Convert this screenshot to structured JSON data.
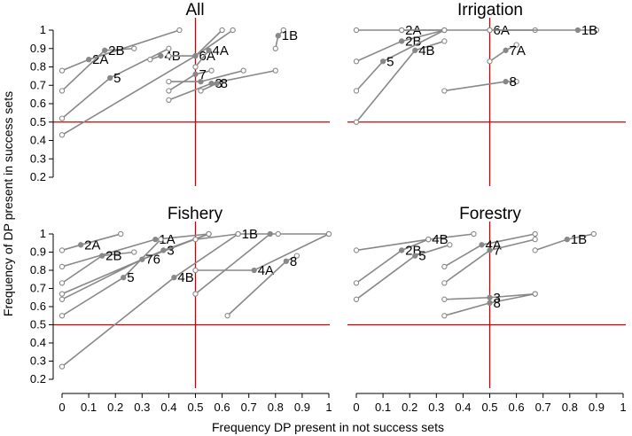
{
  "chart_data": {
    "type": "scatter",
    "xlabel": "Frequency DP present in not success sets",
    "ylabel": "Frequency of DP present in success sets",
    "xlim": [
      -0.04,
      1.05
    ],
    "ylim": [
      0.15,
      1.05
    ],
    "x_ticks": [
      "0",
      "0.1",
      "0.2",
      "0.3",
      "0.4",
      "0.5",
      "0.6",
      "0.7",
      "0.8",
      "0.9",
      "1"
    ],
    "y_ticks": [
      "0.2",
      "0.3",
      "0.4",
      "0.5",
      "0.6",
      "0.7",
      "0.8",
      "0.9",
      "1"
    ],
    "reference_lines": {
      "x": 0.5,
      "y": 0.5,
      "color": "#cc0000"
    },
    "point_color": "#888888",
    "panels": [
      {
        "title": "All",
        "segments": [
          {
            "label": "2A",
            "points": [
              [
                0,
                0.78
              ],
              [
                0.1,
                0.84
              ],
              [
                0.44,
                1
              ]
            ]
          },
          {
            "label": "2B",
            "points": [
              [
                0,
                0.67
              ],
              [
                0.16,
                0.89
              ],
              [
                0.27,
                0.9
              ]
            ]
          },
          {
            "label": "5",
            "points": [
              [
                0,
                0.52
              ],
              [
                0.18,
                0.74
              ],
              [
                0.4,
                0.9
              ]
            ]
          },
          {
            "label": "",
            "points": [
              [
                0,
                0.43
              ],
              [
                0.5,
                0.86
              ],
              [
                0.64,
                1
              ]
            ]
          },
          {
            "label": "4B",
            "points": [
              [
                0.33,
                0.84
              ],
              [
                0.37,
                0.86
              ]
            ]
          },
          {
            "label": "6A",
            "points": [
              [
                0.4,
                0.86
              ],
              [
                0.5,
                0.86
              ],
              [
                0.6,
                1
              ]
            ]
          },
          {
            "label": "4A",
            "points": [
              [
                0.5,
                0.8
              ],
              [
                0.55,
                0.89
              ]
            ]
          },
          {
            "label": "7",
            "points": [
              [
                0.4,
                0.67
              ],
              [
                0.5,
                0.76
              ],
              [
                0.56,
                0.78
              ]
            ]
          },
          {
            "label": "",
            "points": [
              [
                0.4,
                0.72
              ],
              [
                0.52,
                0.72
              ],
              [
                0.68,
                0.78
              ]
            ]
          },
          {
            "label": "3",
            "points": [
              [
                0.4,
                0.62
              ],
              [
                0.56,
                0.71
              ],
              [
                0.8,
                0.78
              ]
            ]
          },
          {
            "label": "8",
            "points": [
              [
                0.52,
                0.67
              ],
              [
                0.58,
                0.71
              ]
            ]
          },
          {
            "label": "1B",
            "points": [
              [
                0.8,
                0.9
              ],
              [
                0.81,
                0.97
              ],
              [
                0.83,
                1
              ]
            ]
          }
        ]
      },
      {
        "title": "Irrigation",
        "segments": [
          {
            "label": "2A",
            "points": [
              [
                0,
                1
              ],
              [
                0.17,
                1
              ],
              [
                0.33,
                1
              ]
            ]
          },
          {
            "label": "6A",
            "points": [
              [
                0.17,
                1
              ],
              [
                0.5,
                1
              ],
              [
                0.67,
                1
              ]
            ]
          },
          {
            "label": "1B",
            "points": [
              [
                0.5,
                1
              ],
              [
                0.83,
                1
              ],
              [
                0.9,
                1
              ]
            ]
          },
          {
            "label": "2B",
            "points": [
              [
                0,
                0.83
              ],
              [
                0.17,
                0.94
              ],
              [
                0.33,
                1
              ]
            ]
          },
          {
            "label": "5",
            "points": [
              [
                0,
                0.67
              ],
              [
                0.1,
                0.83
              ],
              [
                0.33,
                1
              ]
            ]
          },
          {
            "label": "4B",
            "points": [
              [
                0,
                0.5
              ],
              [
                0.22,
                0.89
              ],
              [
                0.33,
                0.94
              ]
            ]
          },
          {
            "label": "7A",
            "points": [
              [
                0.5,
                0.83
              ],
              [
                0.56,
                0.89
              ],
              [
                0.6,
                0.92
              ]
            ]
          },
          {
            "label": "8",
            "points": [
              [
                0.33,
                0.67
              ],
              [
                0.56,
                0.72
              ],
              [
                0.6,
                0.72
              ]
            ]
          }
        ]
      },
      {
        "title": "Fishery",
        "segments": [
          {
            "label": "2A",
            "points": [
              [
                0,
                0.91
              ],
              [
                0.07,
                0.94
              ],
              [
                0.22,
                1
              ]
            ]
          },
          {
            "label": "1A",
            "points": [
              [
                0,
                0.82
              ],
              [
                0.35,
                0.97
              ],
              [
                0.55,
                1
              ]
            ]
          },
          {
            "label": "2B",
            "points": [
              [
                0,
                0.73
              ],
              [
                0.15,
                0.88
              ],
              [
                0.27,
                0.9
              ]
            ]
          },
          {
            "label": "3",
            "points": [
              [
                0,
                0.67
              ],
              [
                0.38,
                0.91
              ],
              [
                0.55,
                1
              ]
            ]
          },
          {
            "label": "76",
            "points": [
              [
                0,
                0.64
              ],
              [
                0.3,
                0.86
              ],
              [
                0.55,
                1
              ]
            ]
          },
          {
            "label": "5",
            "points": [
              [
                0,
                0.55
              ],
              [
                0.23,
                0.76
              ],
              [
                0.37,
                0.97
              ]
            ]
          },
          {
            "label": "4B",
            "points": [
              [
                0,
                0.27
              ],
              [
                0.42,
                0.76
              ],
              [
                0.66,
                1
              ]
            ]
          },
          {
            "label": "1B",
            "points": [
              [
                0.5,
                0.97
              ],
              [
                0.66,
                1
              ],
              [
                0.81,
                1
              ],
              [
                1,
                1
              ]
            ]
          },
          {
            "label": "",
            "points": [
              [
                0.5,
                0.67
              ],
              [
                0.78,
                1
              ]
            ]
          },
          {
            "label": "4A",
            "points": [
              [
                0.5,
                0.8
              ],
              [
                0.72,
                0.8
              ],
              [
                1,
                1
              ]
            ]
          },
          {
            "label": "8",
            "points": [
              [
                0.62,
                0.55
              ],
              [
                0.84,
                0.85
              ],
              [
                0.88,
                0.88
              ]
            ]
          }
        ]
      },
      {
        "title": "Forestry",
        "segments": [
          {
            "label": "4B",
            "points": [
              [
                0,
                0.91
              ],
              [
                0.27,
                0.97
              ],
              [
                0.44,
                1
              ]
            ]
          },
          {
            "label": "2B",
            "points": [
              [
                0,
                0.73
              ],
              [
                0.17,
                0.91
              ],
              [
                0.27,
                0.97
              ]
            ]
          },
          {
            "label": "5",
            "points": [
              [
                0,
                0.64
              ],
              [
                0.22,
                0.88
              ],
              [
                0.35,
                0.94
              ]
            ]
          },
          {
            "label": "4A",
            "points": [
              [
                0.33,
                0.82
              ],
              [
                0.47,
                0.94
              ],
              [
                0.67,
                1
              ]
            ]
          },
          {
            "label": "7",
            "points": [
              [
                0.33,
                0.73
              ],
              [
                0.5,
                0.91
              ],
              [
                0.67,
                0.97
              ]
            ]
          },
          {
            "label": "1B",
            "points": [
              [
                0.67,
                0.91
              ],
              [
                0.79,
                0.97
              ],
              [
                0.89,
                1
              ]
            ]
          },
          {
            "label": "3",
            "points": [
              [
                0.33,
                0.64
              ],
              [
                0.5,
                0.65
              ],
              [
                0.67,
                0.67
              ]
            ]
          },
          {
            "label": "8",
            "points": [
              [
                0.33,
                0.55
              ],
              [
                0.5,
                0.62
              ],
              [
                0.67,
                0.67
              ]
            ]
          }
        ]
      }
    ]
  }
}
